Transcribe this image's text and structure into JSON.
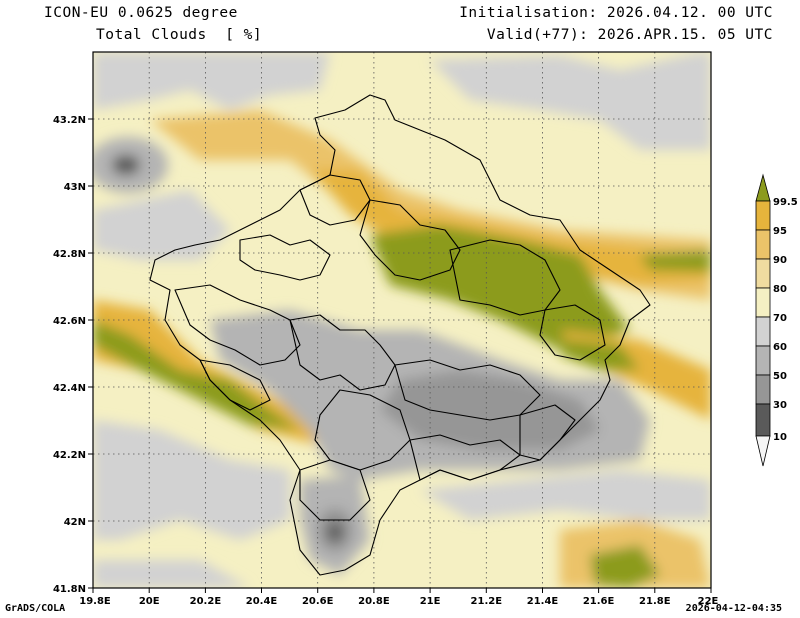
{
  "header": {
    "model": "ICON-EU 0.0625 degree",
    "parameter": "Total Clouds  [ %]",
    "initialisation": "Initialisation: 2026.04.12. 00 UTC",
    "valid": "Valid(+77): 2026.APR.15. 05 UTC"
  },
  "footer": {
    "credit": "GrADS/COLA",
    "timestamp": "2026-04-12-04:35"
  },
  "map": {
    "lon_range": [
      19.8,
      22.0
    ],
    "lat_range": [
      41.8,
      43.4
    ],
    "x_ticks": [
      "19.8E",
      "20E",
      "20.2E",
      "20.4E",
      "20.6E",
      "20.8E",
      "21E",
      "21.2E",
      "21.4E",
      "21.6E",
      "21.8E",
      "22E"
    ],
    "y_ticks": [
      "43.2N",
      "43N",
      "42.8N",
      "42.6N",
      "42.4N",
      "42.2N",
      "42N",
      "41.8N"
    ]
  },
  "colorbar": {
    "levels": [
      "99.5",
      "95",
      "90",
      "80",
      "70",
      "60",
      "50",
      "30",
      "10"
    ],
    "colors": [
      "#8c9b1e",
      "#e6b43c",
      "#ebc369",
      "#f0dca0",
      "#f5f0c3",
      "#d2d2d2",
      "#b4b4b4",
      "#969696",
      "#5a5a5a",
      "#f5f5f5"
    ]
  }
}
